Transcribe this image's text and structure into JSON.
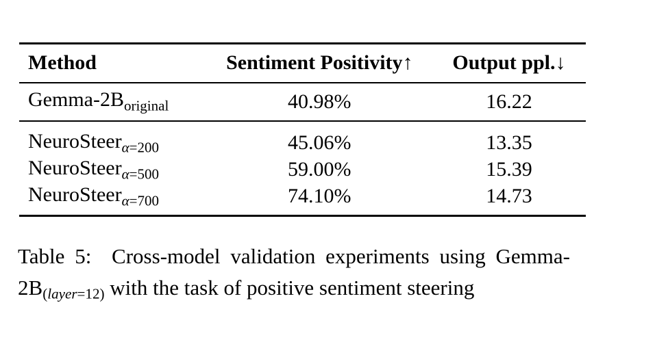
{
  "table": {
    "columns": [
      {
        "label": "Method",
        "arrow": ""
      },
      {
        "label": "Sentiment Positivity",
        "arrow": "↑"
      },
      {
        "label": "Output ppl.",
        "arrow": "↓"
      }
    ],
    "rows": [
      {
        "method_base": "Gemma-2B",
        "method_sub_italic": "",
        "method_sub": "original",
        "positivity": "40.98%",
        "ppl": "16.22"
      },
      {
        "method_base": "NeuroSteer",
        "method_sub_italic": "α",
        "method_sub": "=200",
        "positivity": "45.06%",
        "ppl": "13.35"
      },
      {
        "method_base": "NeuroSteer",
        "method_sub_italic": "α",
        "method_sub": "=500",
        "positivity": "59.00%",
        "ppl": "15.39"
      },
      {
        "method_base": "NeuroSteer",
        "method_sub_italic": "α",
        "method_sub": "=700",
        "positivity": "74.10%",
        "ppl": "14.73"
      }
    ]
  },
  "caption": {
    "prefix": "Table 5:  Cross-model validation experiments using Gemma-2B",
    "sub_pre": "(",
    "sub_italic": "layer",
    "sub_post": "=12)",
    "suffix": " with the task of positive sentiment steering"
  },
  "colors": {
    "text": "#000000",
    "background": "#ffffff",
    "rule": "#000000"
  }
}
